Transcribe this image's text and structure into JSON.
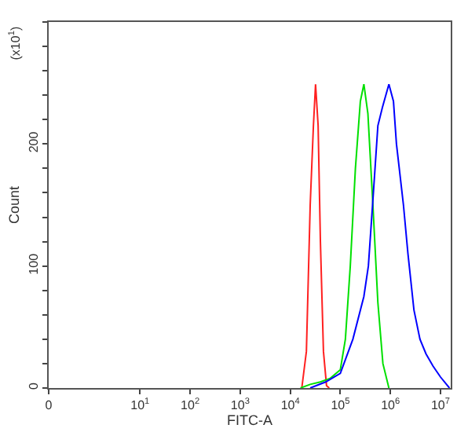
{
  "chart_data": {
    "type": "line",
    "xlabel": "FITC-A",
    "ylabel": "Count",
    "annotations": [
      "(x10$^{1}$)"
    ],
    "log": "x",
    "xlim": [
      0.15,
      16000000
    ],
    "xticks": [
      {
        "value": 0.15,
        "label": "0"
      },
      {
        "value": 10,
        "label": "10$^{1}$"
      },
      {
        "value": 100,
        "label": "10$^{2}$"
      },
      {
        "value": 1000,
        "label": "10$^{3}$"
      },
      {
        "value": 10000,
        "label": "10$^{4}$"
      },
      {
        "value": 100000,
        "label": "10$^{5}$"
      },
      {
        "value": 1000000,
        "label": "10$^{6}$"
      },
      {
        "value": 10000000,
        "label": "10$^{7}$"
      }
    ],
    "ylim": [
      0,
      300
    ],
    "yticks": [
      0,
      {
        "value": 20,
        "label": null
      },
      {
        "value": 40,
        "label": null
      },
      {
        "value": 60,
        "label": null
      },
      {
        "value": 80,
        "label": null
      },
      100,
      {
        "value": 120,
        "label": null
      },
      {
        "value": 140,
        "label": null
      },
      {
        "value": 160,
        "label": null
      },
      {
        "value": 180,
        "label": null
      },
      200,
      {
        "value": 220,
        "label": null
      },
      {
        "value": 240,
        "label": null
      },
      {
        "value": 260,
        "label": null
      },
      {
        "value": 280,
        "label": null
      },
      {
        "value": 300,
        "label": null
      }
    ],
    "marker": "none",
    "line_style": "solid",
    "series": [
      {
        "color": "#ff2020",
        "x": [
          17000,
          21000,
          25000,
          29000,
          32000,
          36000,
          40000,
          46000,
          53000,
          60000
        ],
        "values": [
          0,
          30,
          150,
          215,
          249,
          215,
          120,
          30,
          2,
          0
        ]
      },
      {
        "color": "#00e000",
        "x": [
          16000,
          25000,
          40000,
          63000,
          100000,
          126000,
          158000,
          200000,
          251000,
          295000,
          355000,
          447000,
          562000,
          708000,
          933000
        ],
        "values": [
          0,
          3,
          5,
          8,
          15,
          40,
          100,
          180,
          235,
          249,
          225,
          150,
          70,
          20,
          0
        ]
      },
      {
        "color": "#0000ff",
        "x": [
          25000,
          51000,
          100000,
          178000,
          295000,
          363000,
          457000,
          562000,
          692000,
          933000,
          1150000,
          1320000,
          1820000,
          2240000,
          2950000,
          3890000,
          5130000,
          7080000,
          10000000,
          15100000
        ],
        "values": [
          0,
          5,
          12,
          40,
          75,
          100,
          160,
          215,
          230,
          249,
          235,
          200,
          150,
          110,
          64,
          40,
          28,
          18,
          9,
          0
        ]
      }
    ]
  }
}
